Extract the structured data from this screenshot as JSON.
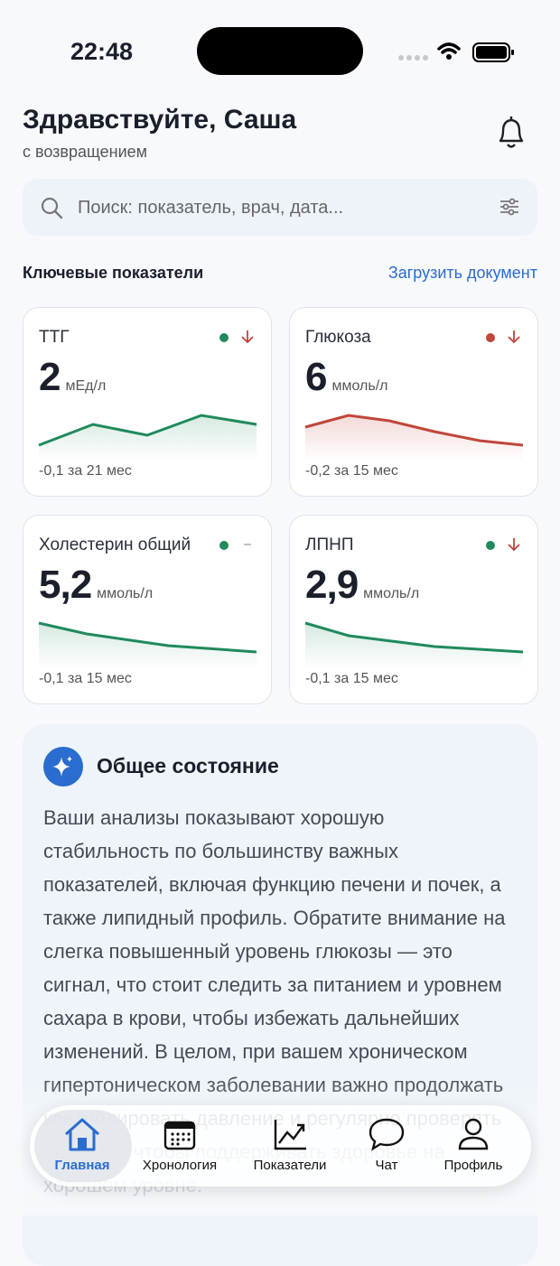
{
  "status_bar": {
    "time": "22:48"
  },
  "header": {
    "title": "Здравствуйте, Саша",
    "subtitle": "с возвращением"
  },
  "search": {
    "placeholder": "Поиск: показатель, врач, дата..."
  },
  "section": {
    "title": "Ключевые показатели",
    "link": "Загрузить документ"
  },
  "cards": [
    {
      "name": "ТТГ",
      "value": "2",
      "unit": "мЕд/л",
      "change": "-0,1 за 21 мес"
    },
    {
      "name": "Глюкоза",
      "value": "6",
      "unit": "ммоль/л",
      "change": "-0,2 за 15 мес"
    },
    {
      "name": "Холестерин общий",
      "value": "5,2",
      "unit": "ммоль/л",
      "change": "-0,1 за 15 мес"
    },
    {
      "name": "ЛПНП",
      "value": "2,9",
      "unit": "ммоль/л",
      "change": "-0,1 за 15 мес"
    }
  ],
  "summary": {
    "title": "Общее состояние",
    "text": "Ваши анализы показывают хорошую стабильность по большинству важных показателей, включая функцию печени и почек, а также липидный профиль. Обратите внимание на слегка повышенный уровень глюкозы — это сигнал, что стоит следить за питанием и уровнем сахара в крови, чтобы избежать дальнейших изменений. В целом, при вашем хроническом гипертоническом заболевании важно продолжать контролировать давление и регулярно проверять анализы, чтобы поддерживать здоровье на хорошем уровне."
  },
  "nav": [
    "Главная",
    "Хронология",
    "Показатели",
    "Чат",
    "Профиль"
  ]
}
